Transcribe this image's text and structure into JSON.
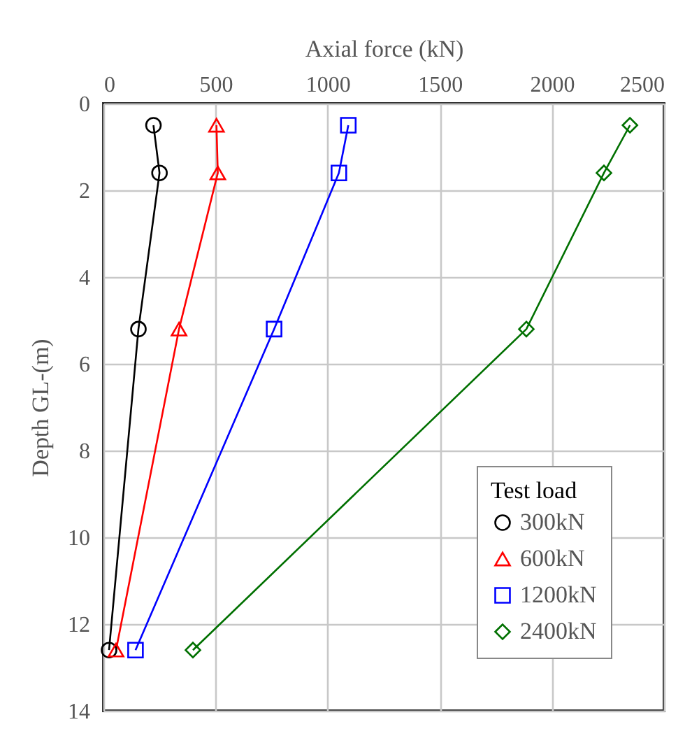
{
  "chart_data": {
    "type": "line",
    "xlabel": "Axial force (kN)",
    "ylabel": "Depth GL-(m)",
    "legend_title": "Test load",
    "legend": "bottom right",
    "grid": true,
    "xlim": [
      0,
      2500
    ],
    "xticks": [
      0,
      500,
      1000,
      1500,
      2000,
      2500
    ],
    "ylim": [
      14,
      0
    ],
    "yticks": [
      0,
      2,
      4,
      6,
      8,
      10,
      12,
      14
    ],
    "series": [
      {
        "name": "300kN",
        "color": "#000000",
        "marker": "circle",
        "x": [
          223,
          250,
          156,
          25
        ],
        "values": [
          0.5,
          1.6,
          5.2,
          12.6
        ]
      },
      {
        "name": "600kN",
        "color": "#ff0000",
        "marker": "triangle",
        "x": [
          504,
          510,
          337,
          56
        ],
        "values": [
          0.5,
          1.6,
          5.2,
          12.6
        ]
      },
      {
        "name": "1200kN",
        "color": "#0000ff",
        "marker": "square",
        "x": [
          1092,
          1050,
          761,
          143
        ],
        "values": [
          0.5,
          1.6,
          5.2,
          12.6
        ]
      },
      {
        "name": "2400kN",
        "color": "#007000",
        "marker": "diamond",
        "x": [
          2348,
          2232,
          1886,
          399
        ],
        "values": [
          0.5,
          1.6,
          5.2,
          12.6
        ]
      }
    ]
  }
}
